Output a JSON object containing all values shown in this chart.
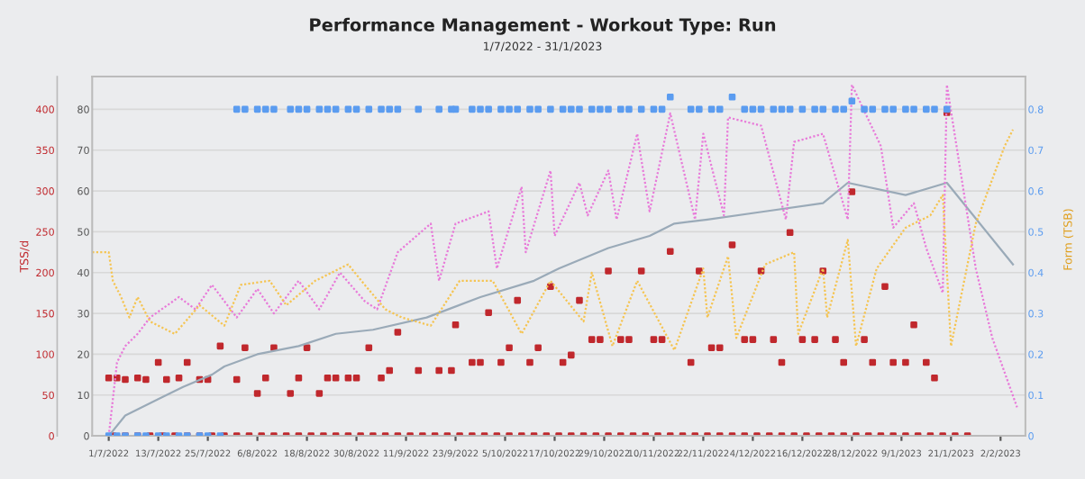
{
  "chart_data": {
    "type": "line",
    "title": "Performance Management - Workout Type: Run",
    "subtitle": "1/7/2022 - 31/1/2023",
    "ylabel": "TSS/d",
    "annotations": [
      "Form (TSB)"
    ],
    "xlim": [
      "2022-06-27",
      "2023-02-08"
    ],
    "xticks": [
      {
        "value": "2022-07-01",
        "label": "1/7/2022"
      },
      {
        "value": "2022-07-13",
        "label": "13/7/2022"
      },
      {
        "value": "2022-07-25",
        "label": "25/7/2022"
      },
      {
        "value": "2022-08-06",
        "label": "6/8/2022"
      },
      {
        "value": "2022-08-18",
        "label": "18/8/2022"
      },
      {
        "value": "2022-08-30",
        "label": "30/8/2022"
      },
      {
        "value": "2022-09-11",
        "label": "11/9/2022"
      },
      {
        "value": "2022-09-23",
        "label": "23/9/2022"
      },
      {
        "value": "2022-10-05",
        "label": "5/10/2022"
      },
      {
        "value": "2022-10-17",
        "label": "17/10/2022"
      },
      {
        "value": "2022-10-29",
        "label": "29/10/2022"
      },
      {
        "value": "2022-11-10",
        "label": "10/11/2022"
      },
      {
        "value": "2022-11-22",
        "label": "22/11/2022"
      },
      {
        "value": "2022-12-04",
        "label": "4/12/2022"
      },
      {
        "value": "2022-12-16",
        "label": "16/12/2022"
      },
      {
        "value": "2022-12-28",
        "label": "28/12/2022"
      },
      {
        "value": "2023-01-09",
        "label": "9/1/2023"
      },
      {
        "value": "2023-01-21",
        "label": "21/1/2023"
      },
      {
        "value": "2023-02-02",
        "label": "2/2/2023"
      }
    ],
    "ylim": [
      0,
      440
    ],
    "yticks": [
      0,
      50,
      100,
      150,
      200,
      250,
      300,
      350,
      400
    ],
    "y2lim": [
      0,
      88
    ],
    "y2ticks": [
      0,
      10,
      20,
      30,
      40,
      50,
      60,
      70,
      80
    ],
    "y3lim": [
      0,
      0.88
    ],
    "y3ticks": [
      {
        "value": 0,
        "label": "0"
      },
      0.1,
      0.2,
      0.3,
      0.4,
      0.5,
      0.6,
      0.7,
      0.8
    ],
    "grid": "y",
    "legend": false,
    "series": [
      {
        "axis": "y2",
        "color": "#9aaab8",
        "line_style": "solid",
        "x": [
          "2022-07-01",
          "2022-07-05",
          "2022-07-13",
          "2022-07-19",
          "2022-07-26",
          "2022-07-29",
          "2022-08-06",
          "2022-08-16",
          "2022-08-25",
          "2022-09-03",
          "2022-09-16",
          "2022-09-29",
          "2022-10-12",
          "2022-10-18",
          "2022-10-30",
          "2022-11-09",
          "2022-11-15",
          "2022-11-23",
          "2022-12-07",
          "2022-12-21",
          "2022-12-27",
          "2023-01-10",
          "2023-01-20",
          "2023-02-05"
        ],
        "values": [
          0,
          5,
          9,
          12,
          15,
          17,
          20,
          22,
          25,
          26,
          29,
          34,
          38,
          41,
          46,
          49,
          52,
          53,
          55,
          57,
          62,
          59,
          62,
          42
        ]
      },
      {
        "axis": "y2",
        "color": "#e87ad9",
        "line_style": "dotted",
        "x": [
          "2022-07-01",
          "2022-07-03",
          "2022-07-05",
          "2022-07-08",
          "2022-07-11",
          "2022-07-18",
          "2022-07-22",
          "2022-07-26",
          "2022-08-01",
          "2022-08-06",
          "2022-08-10",
          "2022-08-16",
          "2022-08-21",
          "2022-08-26",
          "2022-09-01",
          "2022-09-04",
          "2022-09-09",
          "2022-09-17",
          "2022-09-19",
          "2022-09-23",
          "2022-10-01",
          "2022-10-03",
          "2022-10-09",
          "2022-10-10",
          "2022-10-16",
          "2022-10-17",
          "2022-10-23",
          "2022-10-25",
          "2022-10-30",
          "2022-11-01",
          "2022-11-06",
          "2022-11-09",
          "2022-11-14",
          "2022-11-20",
          "2022-11-22",
          "2022-11-27",
          "2022-11-28",
          "2022-12-06",
          "2022-12-12",
          "2022-12-14",
          "2022-12-21",
          "2022-12-27",
          "2022-12-28",
          "2023-01-04",
          "2023-01-07",
          "2023-01-12",
          "2023-01-15",
          "2023-01-19",
          "2023-01-20",
          "2023-01-27",
          "2023-01-31",
          "2023-02-06"
        ],
        "values": [
          0,
          18,
          22,
          25,
          29,
          34,
          31,
          37,
          29,
          36,
          30,
          38,
          31,
          40,
          33,
          31,
          45,
          52,
          38,
          52,
          55,
          41,
          61,
          45,
          65,
          49,
          62,
          54,
          65,
          53,
          74,
          55,
          79,
          53,
          74,
          54,
          78,
          76,
          53,
          72,
          74,
          53,
          86,
          71,
          51,
          57,
          46,
          35,
          86,
          41,
          24,
          7
        ]
      },
      {
        "axis": "y2",
        "color": "#f5c451",
        "line_style": "dotted",
        "x": [
          "2022-06-27",
          "2022-07-01",
          "2022-07-02",
          "2022-07-04",
          "2022-07-06",
          "2022-07-08",
          "2022-07-11",
          "2022-07-17",
          "2022-07-23",
          "2022-07-29",
          "2022-08-02",
          "2022-08-09",
          "2022-08-13",
          "2022-08-20",
          "2022-08-28",
          "2022-09-01",
          "2022-09-06",
          "2022-09-10",
          "2022-09-17",
          "2022-09-24",
          "2022-10-02",
          "2022-10-09",
          "2022-10-16",
          "2022-10-24",
          "2022-10-26",
          "2022-10-31",
          "2022-11-06",
          "2022-11-15",
          "2022-11-22",
          "2022-11-23",
          "2022-11-28",
          "2022-11-30",
          "2022-12-07",
          "2022-12-14",
          "2022-12-15",
          "2022-12-21",
          "2022-12-22",
          "2022-12-27",
          "2022-12-29",
          "2023-01-03",
          "2023-01-10",
          "2023-01-16",
          "2023-01-19",
          "2023-01-21",
          "2023-01-27",
          "2023-02-03",
          "2023-02-05"
        ],
        "values": [
          45,
          45,
          38,
          34,
          29,
          34,
          28,
          25,
          32,
          27,
          37,
          38,
          32,
          38,
          42,
          37,
          31,
          29,
          27,
          38,
          38,
          25,
          38,
          28,
          40,
          22,
          38,
          21,
          41,
          29,
          44,
          24,
          42,
          45,
          25,
          41,
          29,
          48,
          22,
          41,
          51,
          54,
          59,
          22,
          52,
          71,
          75
        ]
      },
      {
        "type": "scatter",
        "axis": "y",
        "color": "#c0282d",
        "marker": "square",
        "x": [
          "2022-07-01",
          "2022-07-03",
          "2022-07-05",
          "2022-07-08",
          "2022-07-10",
          "2022-07-13",
          "2022-07-15",
          "2022-07-18",
          "2022-07-20",
          "2022-07-23",
          "2022-07-25",
          "2022-07-28",
          "2022-08-01",
          "2022-08-03",
          "2022-08-06",
          "2022-08-08",
          "2022-08-10",
          "2022-08-14",
          "2022-08-16",
          "2022-08-18",
          "2022-08-21",
          "2022-08-23",
          "2022-08-25",
          "2022-08-28",
          "2022-08-30",
          "2022-09-02",
          "2022-09-05",
          "2022-09-07",
          "2022-09-09",
          "2022-09-14",
          "2022-09-19",
          "2022-09-22",
          "2022-09-23",
          "2022-09-27",
          "2022-09-29",
          "2022-10-01",
          "2022-10-04",
          "2022-10-06",
          "2022-10-08",
          "2022-10-11",
          "2022-10-13",
          "2022-10-16",
          "2022-10-19",
          "2022-10-21",
          "2022-10-23",
          "2022-10-26",
          "2022-10-28",
          "2022-10-30",
          "2022-11-02",
          "2022-11-04",
          "2022-11-07",
          "2022-11-10",
          "2022-11-12",
          "2022-11-14",
          "2022-11-19",
          "2022-11-21",
          "2022-11-24",
          "2022-11-26",
          "2022-11-29",
          "2022-12-02",
          "2022-12-04",
          "2022-12-06",
          "2022-12-09",
          "2022-12-11",
          "2022-12-13",
          "2022-12-16",
          "2022-12-19",
          "2022-12-21",
          "2022-12-24",
          "2022-12-26",
          "2022-12-28",
          "2022-12-31",
          "2023-01-02",
          "2023-01-05",
          "2023-01-07",
          "2023-01-10",
          "2023-01-12",
          "2023-01-15",
          "2023-01-17",
          "2023-01-20"
        ],
        "values": [
          71,
          71,
          69,
          71,
          69,
          90,
          69,
          71,
          90,
          69,
          69,
          110,
          69,
          108,
          52,
          71,
          108,
          52,
          71,
          108,
          52,
          71,
          71,
          71,
          71,
          108,
          71,
          80,
          127,
          80,
          80,
          80,
          136,
          90,
          90,
          151,
          90,
          108,
          166,
          90,
          108,
          183,
          90,
          99,
          166,
          118,
          118,
          202,
          118,
          118,
          202,
          118,
          118,
          226,
          90,
          202,
          108,
          108,
          234,
          118,
          118,
          202,
          118,
          90,
          249,
          118,
          118,
          202,
          118,
          90,
          299,
          118,
          90,
          183,
          90,
          90,
          136,
          90,
          71,
          396
        ]
      },
      {
        "type": "scatter",
        "axis": "y",
        "color": "#c0282d",
        "marker": "square",
        "x": [
          "2022-07-02",
          "2022-07-05",
          "2022-07-08",
          "2022-07-11",
          "2022-07-14",
          "2022-07-17",
          "2022-07-20",
          "2022-07-23",
          "2022-07-26",
          "2022-07-29",
          "2022-08-01",
          "2022-08-04",
          "2022-08-07",
          "2022-08-10",
          "2022-08-13",
          "2022-08-16",
          "2022-08-19",
          "2022-08-22",
          "2022-08-25",
          "2022-08-28",
          "2022-08-31",
          "2022-09-03",
          "2022-09-06",
          "2022-09-09",
          "2022-09-12",
          "2022-09-15",
          "2022-09-18",
          "2022-09-21",
          "2022-09-24",
          "2022-09-27",
          "2022-09-30",
          "2022-10-03",
          "2022-10-06",
          "2022-10-09",
          "2022-10-12",
          "2022-10-15",
          "2022-10-18",
          "2022-10-21",
          "2022-10-24",
          "2022-10-27",
          "2022-10-30",
          "2022-11-02",
          "2022-11-05",
          "2022-11-08",
          "2022-11-11",
          "2022-11-14",
          "2022-11-17",
          "2022-11-20",
          "2022-11-23",
          "2022-11-26",
          "2022-11-29",
          "2022-12-02",
          "2022-12-05",
          "2022-12-08",
          "2022-12-11",
          "2022-12-14",
          "2022-12-17",
          "2022-12-20",
          "2022-12-23",
          "2022-12-26",
          "2022-12-29",
          "2023-01-01",
          "2023-01-04",
          "2023-01-07",
          "2023-01-10",
          "2023-01-13",
          "2023-01-16",
          "2023-01-19",
          "2023-01-22",
          "2023-01-25"
        ],
        "values": [
          0,
          0,
          0,
          0,
          0,
          0,
          0,
          0,
          0,
          0,
          0,
          0,
          0,
          0,
          0,
          0,
          0,
          0,
          0,
          0,
          0,
          0,
          0,
          0,
          0,
          0,
          0,
          0,
          0,
          0,
          0,
          0,
          0,
          0,
          0,
          0,
          0,
          0,
          0,
          0,
          0,
          0,
          0,
          0,
          0,
          0,
          0,
          0,
          0,
          0,
          0,
          0,
          0,
          0,
          0,
          0,
          0,
          0,
          0,
          0,
          0,
          0,
          0,
          0,
          0,
          0,
          0,
          0,
          0,
          0
        ]
      },
      {
        "type": "scatter",
        "axis": "y3",
        "color": "#5b9cf0",
        "marker": "square",
        "x": [
          "2022-07-01",
          "2022-07-03",
          "2022-07-05",
          "2022-07-08",
          "2022-07-10",
          "2022-07-13",
          "2022-07-15",
          "2022-07-18",
          "2022-07-20",
          "2022-07-23",
          "2022-07-25",
          "2022-07-28",
          "2022-08-01",
          "2022-08-03",
          "2022-08-06",
          "2022-08-08",
          "2022-08-10",
          "2022-08-14",
          "2022-08-16",
          "2022-08-18",
          "2022-08-21",
          "2022-08-23",
          "2022-08-25",
          "2022-08-28",
          "2022-08-30",
          "2022-09-02",
          "2022-09-05",
          "2022-09-07",
          "2022-09-09",
          "2022-09-14",
          "2022-09-19",
          "2022-09-22",
          "2022-09-23",
          "2022-09-27",
          "2022-09-29",
          "2022-10-01",
          "2022-10-04",
          "2022-10-06",
          "2022-10-08",
          "2022-10-11",
          "2022-10-13",
          "2022-10-16",
          "2022-10-19",
          "2022-10-21",
          "2022-10-23",
          "2022-10-26",
          "2022-10-28",
          "2022-10-30",
          "2022-11-02",
          "2022-11-04",
          "2022-11-07",
          "2022-11-10",
          "2022-11-12",
          "2022-11-14",
          "2022-11-19",
          "2022-11-21",
          "2022-11-24",
          "2022-11-26",
          "2022-11-29",
          "2022-12-02",
          "2022-12-04",
          "2022-12-06",
          "2022-12-09",
          "2022-12-11",
          "2022-12-13",
          "2022-12-16",
          "2022-12-19",
          "2022-12-21",
          "2022-12-24",
          "2022-12-26",
          "2022-12-28",
          "2022-12-31",
          "2023-01-02",
          "2023-01-05",
          "2023-01-07",
          "2023-01-10",
          "2023-01-12",
          "2023-01-15",
          "2023-01-17",
          "2023-01-20"
        ],
        "values": [
          0,
          0,
          0,
          0,
          0,
          0,
          0,
          0,
          0,
          0,
          0,
          0,
          0.8,
          0.8,
          0.8,
          0.8,
          0.8,
          0.8,
          0.8,
          0.8,
          0.8,
          0.8,
          0.8,
          0.8,
          0.8,
          0.8,
          0.8,
          0.8,
          0.8,
          0.8,
          0.8,
          0.8,
          0.8,
          0.8,
          0.8,
          0.8,
          0.8,
          0.8,
          0.8,
          0.8,
          0.8,
          0.8,
          0.8,
          0.8,
          0.8,
          0.8,
          0.8,
          0.8,
          0.8,
          0.8,
          0.8,
          0.8,
          0.8,
          0.83,
          0.8,
          0.8,
          0.8,
          0.8,
          0.83,
          0.8,
          0.8,
          0.8,
          0.8,
          0.8,
          0.8,
          0.8,
          0.8,
          0.8,
          0.8,
          0.8,
          0.82,
          0.8,
          0.8,
          0.8,
          0.8,
          0.8,
          0.8,
          0.8,
          0.8,
          0.8
        ]
      }
    ]
  }
}
